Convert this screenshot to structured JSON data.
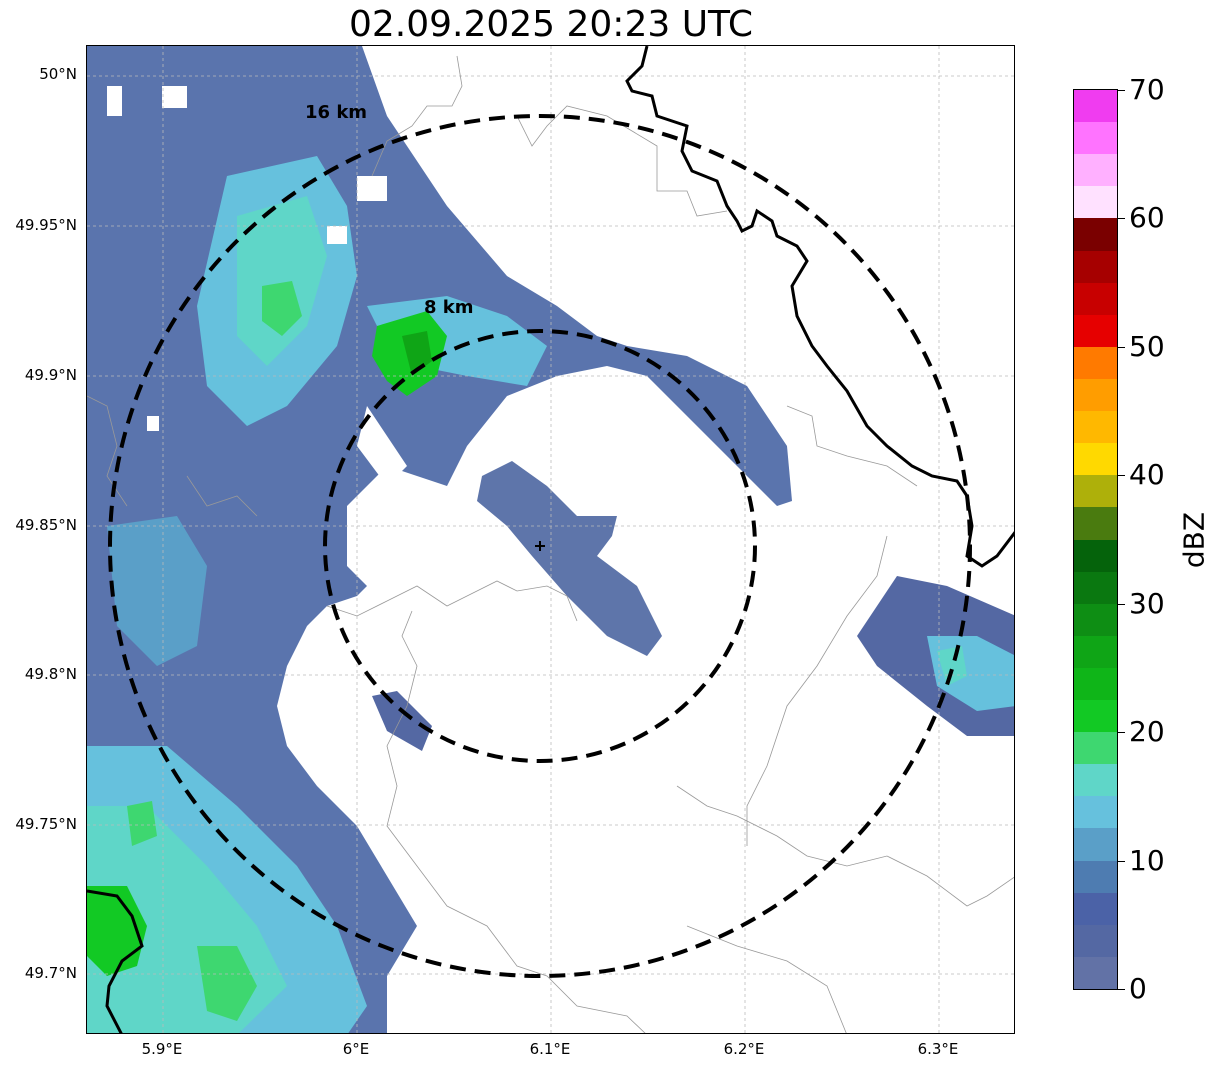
{
  "title": "02.09.2025 20:23 UTC",
  "lat_ticks": [
    "50°N",
    "49.95°N",
    "49.9°N",
    "49.85°N",
    "49.8°N",
    "49.75°N",
    "49.7°N"
  ],
  "lon_ticks": [
    "5.9°E",
    "6°E",
    "6.1°E",
    "6.2°E",
    "6.3°E"
  ],
  "rings": [
    {
      "label": "16 km"
    },
    {
      "label": "8 km"
    }
  ],
  "colorbar": {
    "label": "dBZ",
    "ticks": [
      "0",
      "10",
      "20",
      "30",
      "40",
      "50",
      "60",
      "70"
    ],
    "min": 0,
    "max": 70,
    "step": 2.5,
    "colors": [
      "#6272a6",
      "#5468a3",
      "#4b62a7",
      "#4e7cb1",
      "#5a9fc8",
      "#66c1dd",
      "#5fd6c8",
      "#3ed770",
      "#12c924",
      "#0fb518",
      "#0fa516",
      "#0e8e14",
      "#0a7810",
      "#05630b",
      "#4a7b0f",
      "#aeb00a",
      "#ffd900",
      "#ffb800",
      "#ff9d00",
      "#ff7a00",
      "#e60000",
      "#c80000",
      "#a60000",
      "#7a0000",
      "#ffe1ff",
      "#ffb0ff",
      "#ff73ff",
      "#f03cf0"
    ]
  },
  "colors": {
    "ring": "#000000",
    "border": "#000000",
    "admin_lines": "#999999",
    "grid": "#bbbbbb"
  }
}
